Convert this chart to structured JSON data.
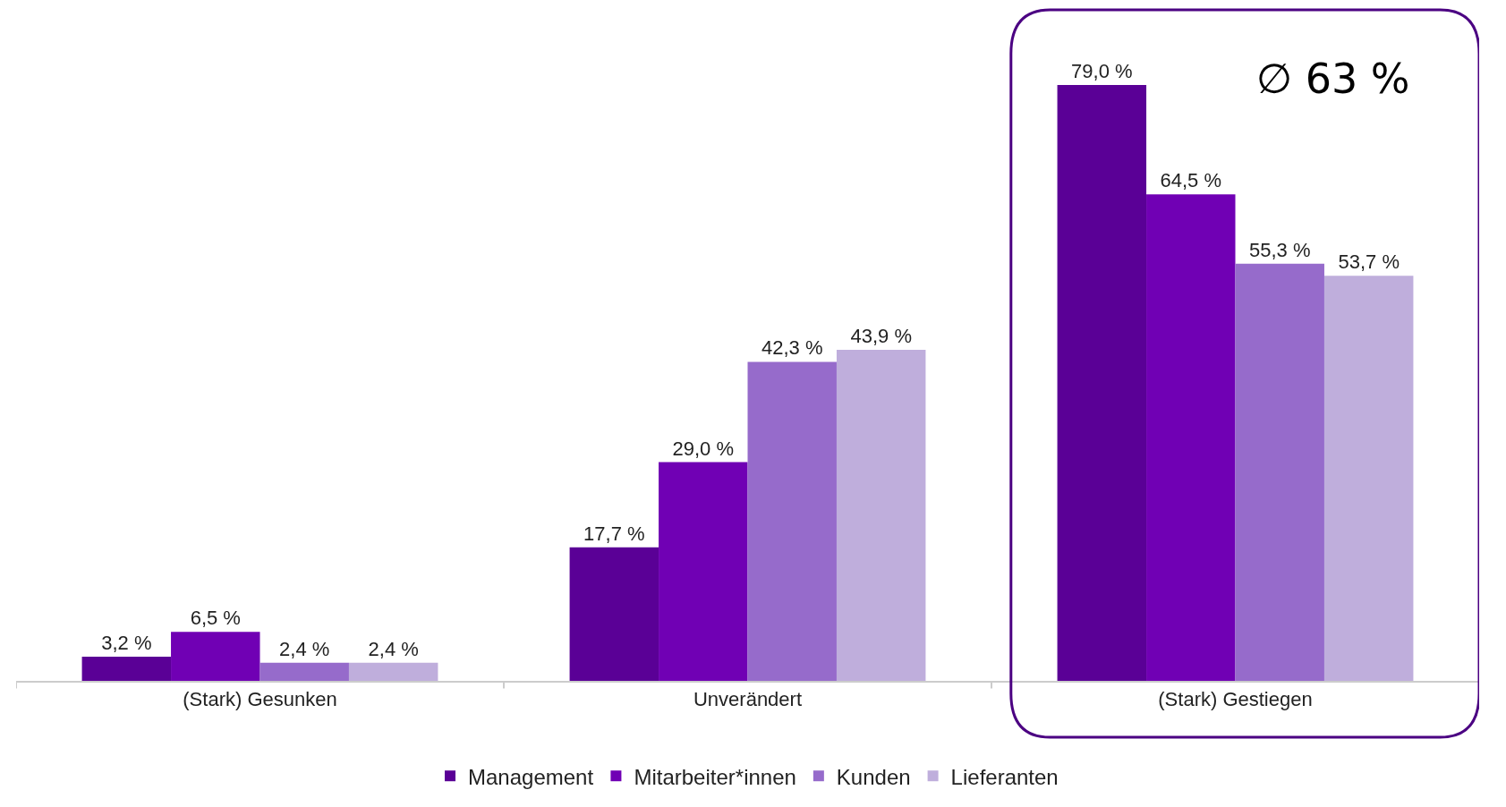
{
  "chart_data": {
    "type": "bar",
    "categories": [
      "(Stark) Gesunken",
      "Unverändert",
      "(Stark) Gestiegen"
    ],
    "series": [
      {
        "name": "Management",
        "color": "#5a0096",
        "values": [
          3.2,
          17.7,
          79.0
        ],
        "value_labels": [
          "3,2 %",
          "17,7 %",
          "79,0 %"
        ]
      },
      {
        "name": "Mitarbeiter*innen",
        "color": "#7000b4",
        "values": [
          6.5,
          29.0,
          64.5
        ],
        "value_labels": [
          "6,5 %",
          "29,0 %",
          "64,5 %"
        ]
      },
      {
        "name": "Kunden",
        "color": "#966bcb",
        "values": [
          2.4,
          42.3,
          55.3
        ],
        "value_labels": [
          "2,4 %",
          "42,3 %",
          "55,3 %"
        ]
      },
      {
        "name": "Lieferanten",
        "color": "#bfaedc",
        "values": [
          2.4,
          43.9,
          53.7
        ],
        "value_labels": [
          "2,4 %",
          "43,9 %",
          "53,7 %"
        ]
      }
    ],
    "annotations": [
      "∅ 63 %"
    ],
    "legend": "bottom"
  }
}
